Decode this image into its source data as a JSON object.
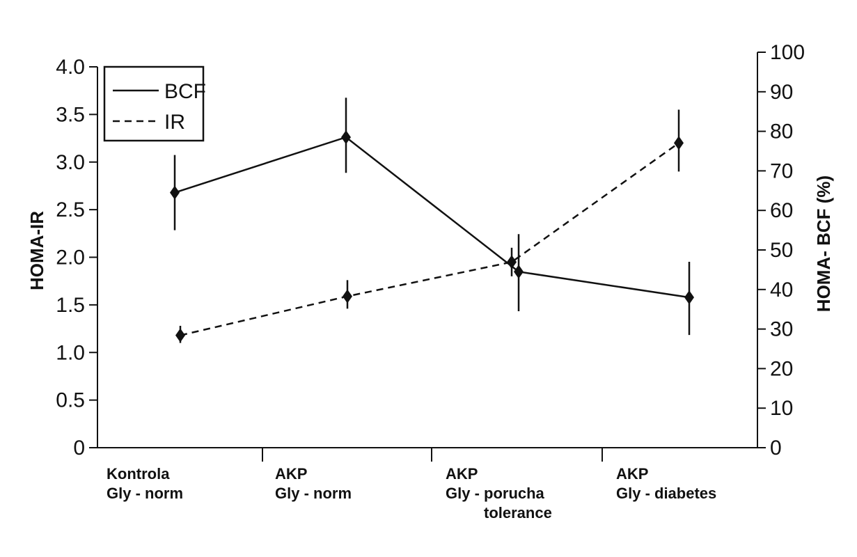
{
  "chart_data": {
    "type": "line",
    "ylabel_left": "HOMA-IR",
    "ylabel_right": "HOMA- BCF (%)",
    "ylim_left": [
      0,
      4.0
    ],
    "ylim_right": [
      0,
      100
    ],
    "yticks_left": [
      "0",
      "0.5",
      "1.0",
      "1.5",
      "2.0",
      "2.5",
      "3.0",
      "3.5",
      "4.0"
    ],
    "yticks_right": [
      "0",
      "10",
      "20",
      "30",
      "40",
      "50",
      "60",
      "70",
      "80",
      "90",
      "100"
    ],
    "categories": [
      [
        "Kontrola",
        "Gly - norm"
      ],
      [
        "AKP",
        "Gly - norm"
      ],
      [
        "AKP",
        "Gly - porucha",
        "tolerance"
      ],
      [
        "AKP",
        "Gly - diabetes"
      ]
    ],
    "series": [
      {
        "name": "BCF",
        "axis": "right",
        "style": "solid",
        "values": [
          64.5,
          78.5,
          44.5,
          38
        ],
        "err_low": [
          55,
          69.5,
          34.5,
          28.5
        ],
        "err_high": [
          74,
          88.5,
          54,
          47
        ]
      },
      {
        "name": "IR",
        "axis": "left",
        "style": "dashed",
        "values": [
          1.18,
          1.59,
          1.95,
          3.2
        ],
        "err_low": [
          1.1,
          1.46,
          1.8,
          2.9
        ],
        "err_high": [
          1.28,
          1.76,
          2.1,
          3.55
        ]
      }
    ],
    "legend_position": "top-left",
    "grid": false,
    "colors": {
      "line": "#111111",
      "background": "#ffffff"
    }
  }
}
